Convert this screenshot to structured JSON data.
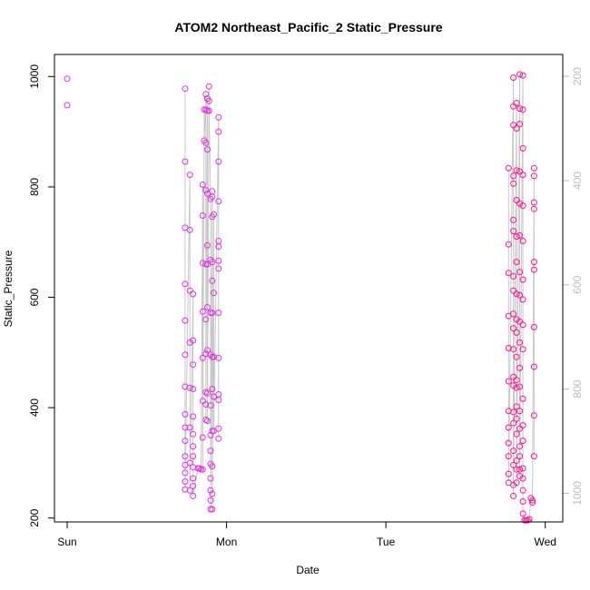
{
  "chart_data": {
    "type": "scatter",
    "title": "ATOM2 Northeast_Pacific_2 Static_Pressure",
    "xlabel": "Date",
    "ylabel": "Static_Pressure",
    "x_ticks": [
      "Sun",
      "Mon",
      "Tue",
      "Wed"
    ],
    "y_ticks": [
      200,
      400,
      600,
      800,
      1000
    ],
    "y_right_ticks": [
      200,
      400,
      600,
      800,
      1000
    ],
    "xlim_days": [
      -0.08,
      3.11
    ],
    "ylim": [
      193,
      1040
    ],
    "y_right_lim": [
      1055,
      158
    ],
    "y_right_reversed": true,
    "grid": false,
    "colors": {
      "points_early": "#e033e0",
      "points_late": "#ff1493",
      "line": "#c8c8c8",
      "right_axis": "#bdbdbd"
    },
    "series": [
      {
        "marker": "open-circle",
        "points": [
          [
            0.0,
            996
          ],
          [
            0.0,
            948
          ],
          [
            0.74,
            978
          ],
          [
            0.74,
            846
          ],
          [
            0.74,
            726
          ],
          [
            0.74,
            624
          ],
          [
            0.74,
            558
          ],
          [
            0.74,
            496
          ],
          [
            0.74,
            438
          ],
          [
            0.74,
            388
          ],
          [
            0.74,
            364
          ],
          [
            0.74,
            340
          ],
          [
            0.74,
            312
          ],
          [
            0.74,
            296
          ],
          [
            0.74,
            282
          ],
          [
            0.74,
            266
          ],
          [
            0.74,
            252
          ],
          [
            0.77,
            822
          ],
          [
            0.77,
            722
          ],
          [
            0.77,
            612
          ],
          [
            0.77,
            518
          ],
          [
            0.77,
            436
          ],
          [
            0.77,
            364
          ],
          [
            0.77,
            300
          ],
          [
            0.77,
            250
          ],
          [
            0.79,
            606
          ],
          [
            0.79,
            522
          ],
          [
            0.79,
            478
          ],
          [
            0.79,
            434
          ],
          [
            0.79,
            384
          ],
          [
            0.79,
            352
          ],
          [
            0.79,
            330
          ],
          [
            0.79,
            312
          ],
          [
            0.79,
            292
          ],
          [
            0.79,
            272
          ],
          [
            0.79,
            258
          ],
          [
            0.79,
            240
          ],
          [
            0.82,
            290
          ],
          [
            0.83,
            290
          ],
          [
            0.84,
            288
          ],
          [
            0.85,
            804
          ],
          [
            0.85,
            748
          ],
          [
            0.85,
            662
          ],
          [
            0.85,
            574
          ],
          [
            0.85,
            490
          ],
          [
            0.85,
            412
          ],
          [
            0.85,
            346
          ],
          [
            0.85,
            288
          ],
          [
            0.86,
            940
          ],
          [
            0.86,
            884
          ],
          [
            0.87,
            968
          ],
          [
            0.87,
            940
          ],
          [
            0.87,
            880
          ],
          [
            0.87,
            794
          ],
          [
            0.87,
            660
          ],
          [
            0.87,
            560
          ],
          [
            0.87,
            498
          ],
          [
            0.87,
            428
          ],
          [
            0.87,
            406
          ],
          [
            0.87,
            378
          ],
          [
            0.88,
            960
          ],
          [
            0.88,
            938
          ],
          [
            0.88,
            868
          ],
          [
            0.88,
            788
          ],
          [
            0.88,
            694
          ],
          [
            0.88,
            660
          ],
          [
            0.88,
            582
          ],
          [
            0.88,
            504
          ],
          [
            0.88,
            426
          ],
          [
            0.88,
            376
          ],
          [
            0.89,
            982
          ],
          [
            0.89,
            956
          ],
          [
            0.89,
            938
          ],
          [
            0.9,
            778
          ],
          [
            0.9,
            668
          ],
          [
            0.9,
            572
          ],
          [
            0.9,
            496
          ],
          [
            0.9,
            404
          ],
          [
            0.9,
            350
          ],
          [
            0.9,
            322
          ],
          [
            0.9,
            298
          ],
          [
            0.9,
            272
          ],
          [
            0.9,
            250
          ],
          [
            0.9,
            232
          ],
          [
            0.9,
            216
          ],
          [
            0.91,
            792
          ],
          [
            0.91,
            782
          ],
          [
            0.91,
            746
          ],
          [
            0.91,
            664
          ],
          [
            0.91,
            630
          ],
          [
            0.91,
            572
          ],
          [
            0.91,
            492
          ],
          [
            0.91,
            434
          ],
          [
            0.91,
            358
          ],
          [
            0.91,
            294
          ],
          [
            0.91,
            244
          ],
          [
            0.91,
            216
          ],
          [
            0.92,
            750
          ],
          [
            0.92,
            608
          ],
          [
            0.92,
            492
          ],
          [
            0.92,
            420
          ],
          [
            0.92,
            358
          ],
          [
            0.95,
            926
          ],
          [
            0.95,
            900
          ],
          [
            0.95,
            846
          ],
          [
            0.95,
            774
          ],
          [
            0.95,
            702
          ],
          [
            0.95,
            692
          ],
          [
            0.95,
            666
          ],
          [
            0.95,
            652
          ],
          [
            0.95,
            572
          ],
          [
            0.95,
            490
          ],
          [
            0.95,
            424
          ],
          [
            0.95,
            414
          ],
          [
            0.95,
            362
          ],
          [
            0.95,
            344
          ],
          [
            2.77,
            834
          ],
          [
            2.77,
            696
          ],
          [
            2.77,
            644
          ],
          [
            2.77,
            566
          ],
          [
            2.77,
            508
          ],
          [
            2.77,
            448
          ],
          [
            2.77,
            394
          ],
          [
            2.77,
            364
          ],
          [
            2.77,
            336
          ],
          [
            2.77,
            312
          ],
          [
            2.77,
            280
          ],
          [
            2.77,
            264
          ],
          [
            2.8,
            998
          ],
          [
            2.8,
            946
          ],
          [
            2.8,
            912
          ],
          [
            2.8,
            820
          ],
          [
            2.8,
            806
          ],
          [
            2.8,
            740
          ],
          [
            2.8,
            720
          ],
          [
            2.8,
            638
          ],
          [
            2.8,
            612
          ],
          [
            2.8,
            570
          ],
          [
            2.8,
            544
          ],
          [
            2.8,
            506
          ],
          [
            2.8,
            456
          ],
          [
            2.8,
            440
          ],
          [
            2.8,
            392
          ],
          [
            2.8,
            372
          ],
          [
            2.8,
            322
          ],
          [
            2.8,
            296
          ],
          [
            2.8,
            260
          ],
          [
            2.8,
            240
          ],
          [
            2.82,
            952
          ],
          [
            2.82,
            906
          ],
          [
            2.82,
            830
          ],
          [
            2.82,
            776
          ],
          [
            2.82,
            710
          ],
          [
            2.82,
            664
          ],
          [
            2.82,
            606
          ],
          [
            2.82,
            560
          ],
          [
            2.82,
            536
          ],
          [
            2.82,
            492
          ],
          [
            2.82,
            450
          ],
          [
            2.82,
            436
          ],
          [
            2.82,
            402
          ],
          [
            2.82,
            380
          ],
          [
            2.82,
            352
          ],
          [
            2.82,
            304
          ],
          [
            2.82,
            288
          ],
          [
            2.82,
            264
          ],
          [
            2.84,
            1004
          ],
          [
            2.84,
            942
          ],
          [
            2.84,
            914
          ],
          [
            2.84,
            828
          ],
          [
            2.84,
            770
          ],
          [
            2.84,
            712
          ],
          [
            2.84,
            646
          ],
          [
            2.84,
            604
          ],
          [
            2.84,
            556
          ],
          [
            2.84,
            518
          ],
          [
            2.84,
            472
          ],
          [
            2.84,
            438
          ],
          [
            2.84,
            394
          ],
          [
            2.84,
            362
          ],
          [
            2.84,
            330
          ],
          [
            2.84,
            312
          ],
          [
            2.84,
            288
          ],
          [
            2.84,
            276
          ],
          [
            2.86,
            1002
          ],
          [
            2.86,
            940
          ],
          [
            2.86,
            870
          ],
          [
            2.86,
            822
          ],
          [
            2.86,
            766
          ],
          [
            2.86,
            702
          ],
          [
            2.86,
            632
          ],
          [
            2.86,
            596
          ],
          [
            2.86,
            550
          ],
          [
            2.86,
            506
          ],
          [
            2.86,
            416
          ],
          [
            2.86,
            368
          ],
          [
            2.86,
            340
          ],
          [
            2.86,
            290
          ],
          [
            2.86,
            272
          ],
          [
            2.86,
            250
          ],
          [
            2.86,
            230
          ],
          [
            2.86,
            208
          ],
          [
            2.87,
            196
          ],
          [
            2.88,
            196
          ],
          [
            2.89,
            196
          ],
          [
            2.9,
            198
          ],
          [
            2.91,
            236
          ],
          [
            2.92,
            232
          ],
          [
            2.92,
            228
          ],
          [
            2.93,
            834
          ],
          [
            2.93,
            820
          ],
          [
            2.93,
            772
          ],
          [
            2.93,
            760
          ],
          [
            2.93,
            664
          ],
          [
            2.93,
            650
          ],
          [
            2.93,
            546
          ],
          [
            2.93,
            474
          ],
          [
            2.93,
            386
          ],
          [
            2.93,
            312
          ]
        ]
      }
    ]
  }
}
